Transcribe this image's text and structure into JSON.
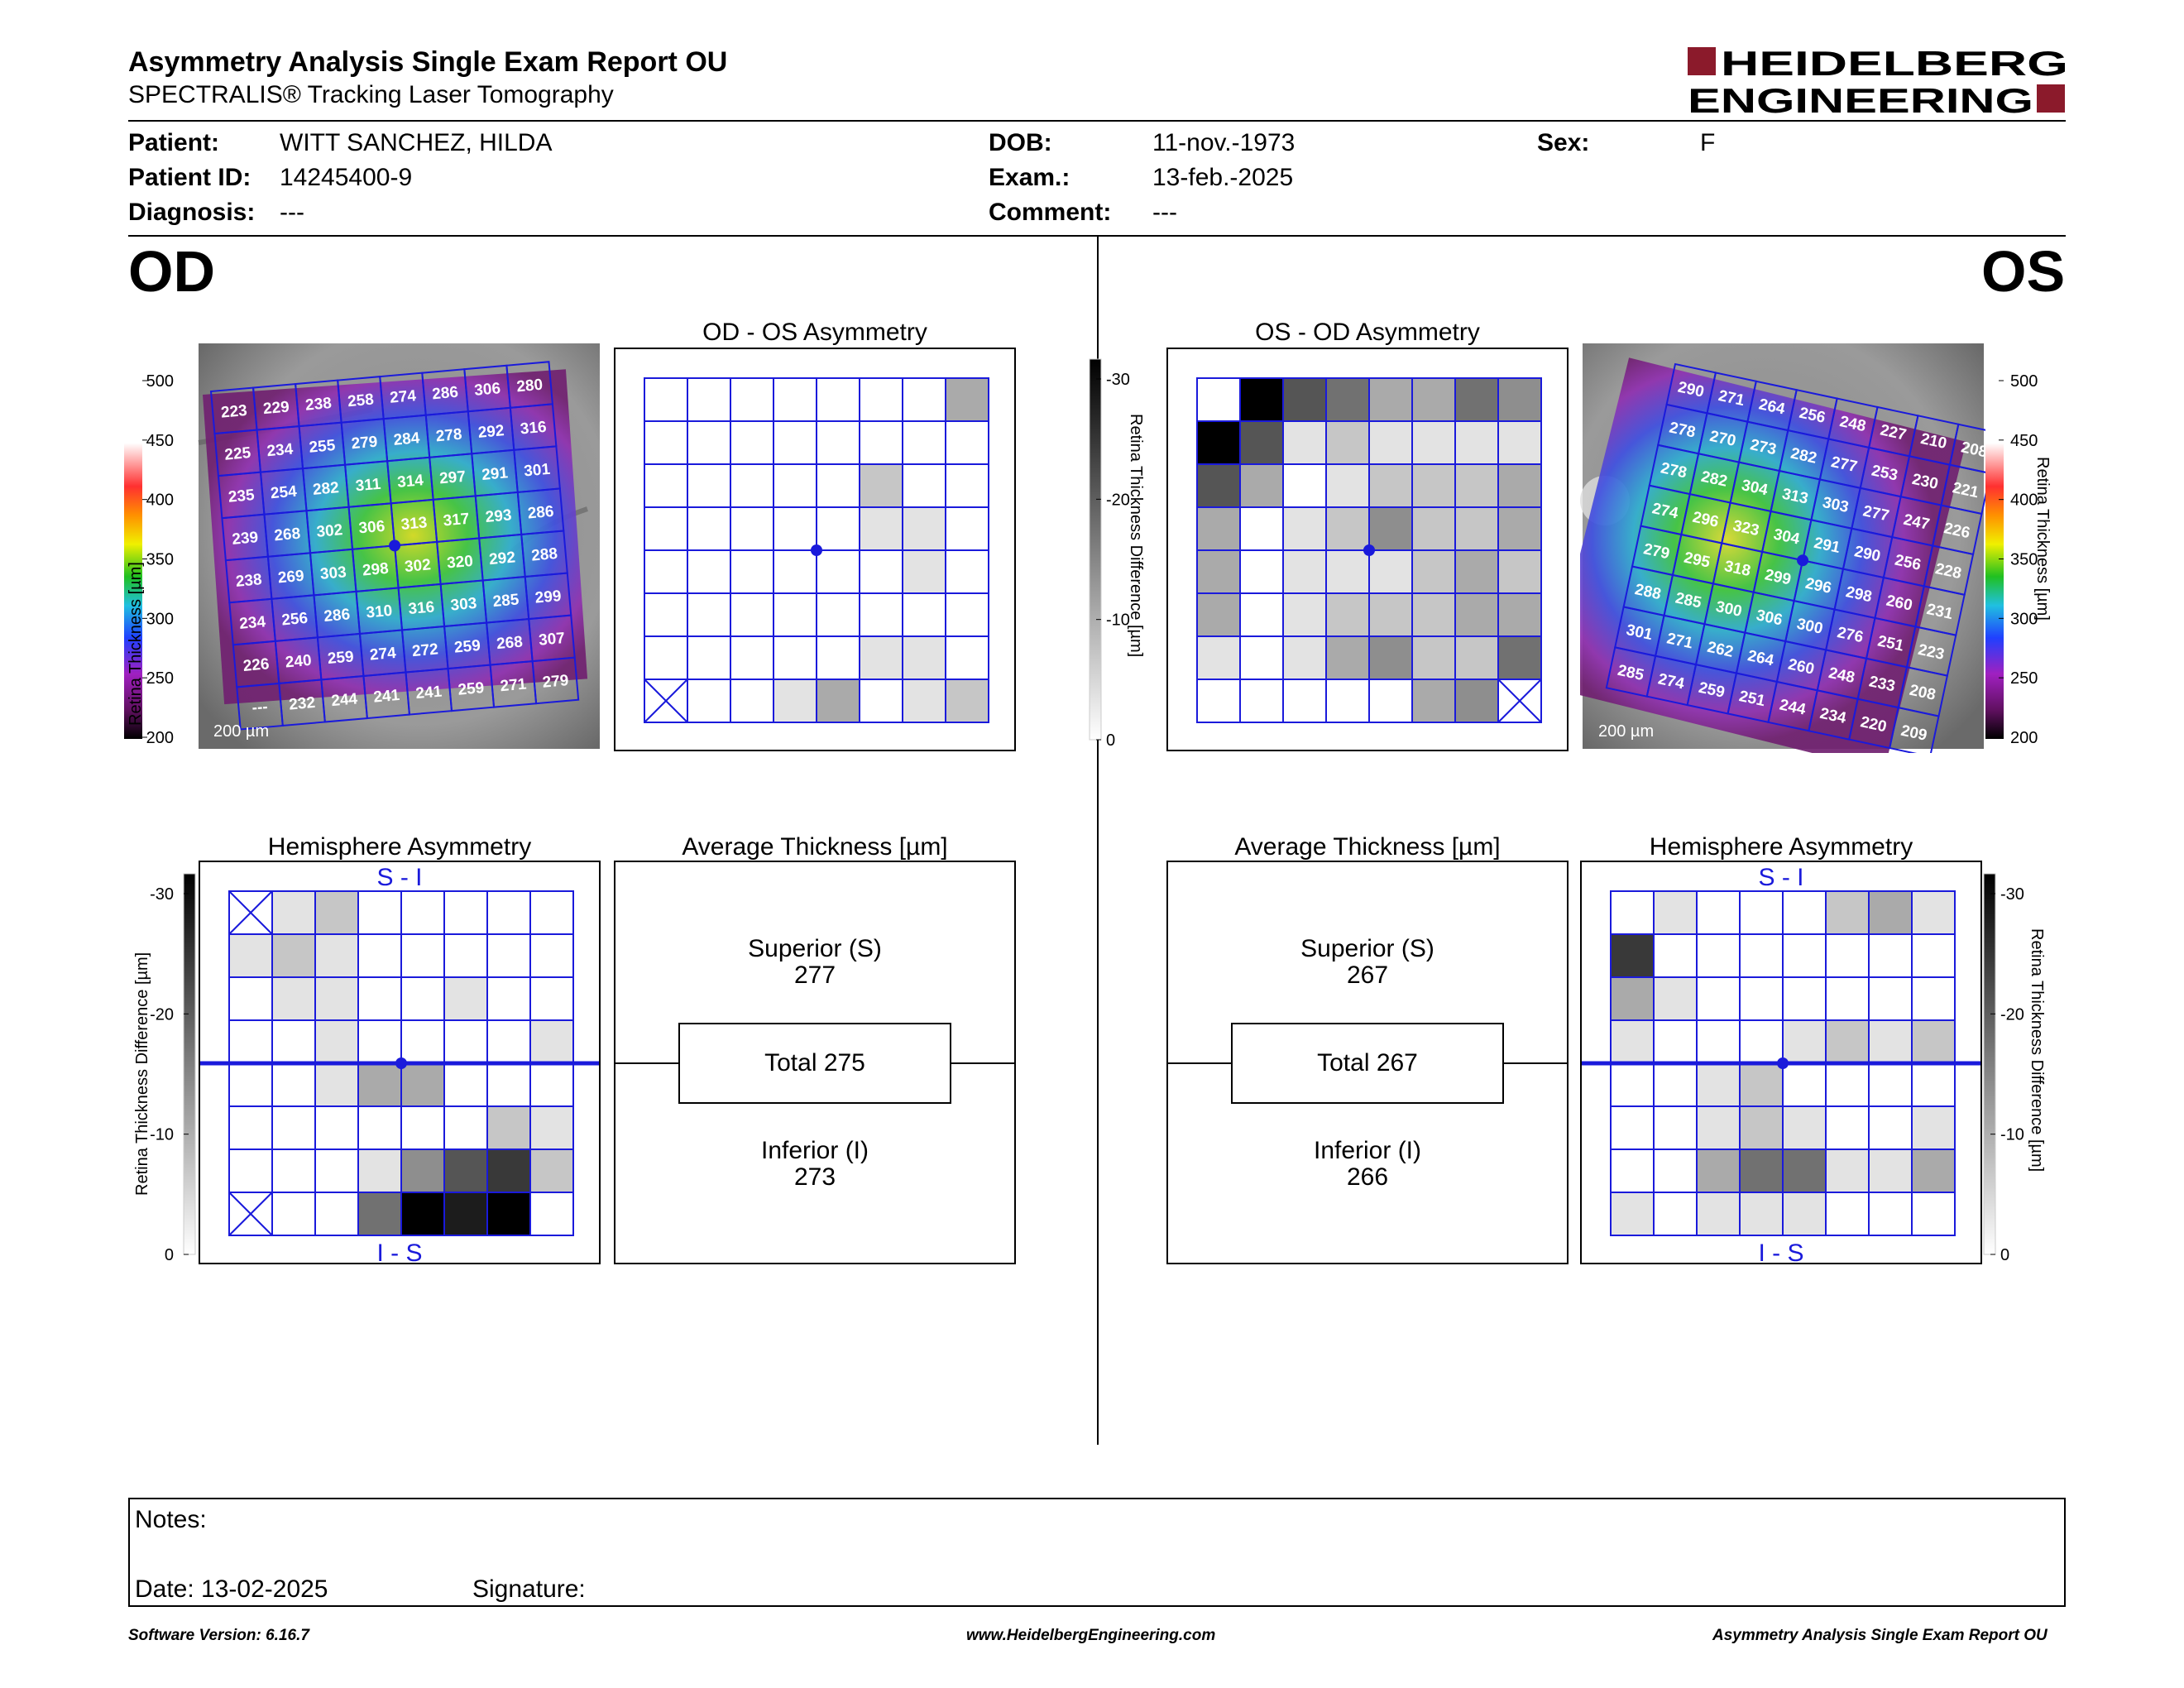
{
  "header": {
    "title": "Asymmetry Analysis Single Exam Report OU",
    "subtitle": "SPECTRALIS® Tracking Laser Tomography",
    "logo_line1": "HEIDELBERG",
    "logo_line2": "ENGINEERING",
    "brand_color": "#8b1a2b"
  },
  "patient": {
    "patient_label": "Patient:",
    "patient_value": "WITT SANCHEZ, HILDA",
    "id_label": "Patient ID:",
    "id_value": "14245400-9",
    "diagnosis_label": "Diagnosis:",
    "diagnosis_value": "---",
    "dob_label": "DOB:",
    "dob_value": "11-nov.-1973",
    "exam_label": "Exam.:",
    "exam_value": "13-feb.-2025",
    "comment_label": "Comment:",
    "comment_value": "---",
    "sex_label": "Sex:",
    "sex_value": "F"
  },
  "od": {
    "eye_label": "OD",
    "asym_title": "OD - OS Asymmetry",
    "hemi_title": "Hemisphere Asymmetry",
    "avg_title": "Average Thickness [µm]",
    "scale_label": "200 µm",
    "thickness_axis_label": "Retina  Thickness [µm]",
    "thickness_ticks": [
      "500",
      "450",
      "400",
      "350",
      "300",
      "250",
      "200"
    ],
    "diff_axis_label": "Retina Thickness Difference [µm]",
    "diff_ticks": [
      "-30",
      "-20",
      "-10",
      "0"
    ],
    "hemi_top_label": "S - I",
    "hemi_bottom_label": "I - S",
    "superior_label": "Superior (S)",
    "superior_value": "277",
    "total_label": "Total 275",
    "inferior_label": "Inferior (I)",
    "inferior_value": "273",
    "thickness_grid": [
      [
        "223",
        "229",
        "238",
        "258",
        "274",
        "286",
        "306",
        "280"
      ],
      [
        "225",
        "234",
        "255",
        "279",
        "284",
        "278",
        "292",
        "316"
      ],
      [
        "235",
        "254",
        "282",
        "311",
        "314",
        "297",
        "291",
        "301"
      ],
      [
        "239",
        "268",
        "302",
        "306",
        "313",
        "317",
        "293",
        "286"
      ],
      [
        "238",
        "269",
        "303",
        "298",
        "302",
        "320",
        "292",
        "288"
      ],
      [
        "234",
        "256",
        "286",
        "310",
        "316",
        "303",
        "285",
        "299"
      ],
      [
        "226",
        "240",
        "259",
        "274",
        "272",
        "259",
        "268",
        "307"
      ],
      [
        "---",
        "232",
        "244",
        "241",
        "241",
        "259",
        "271",
        "279"
      ]
    ],
    "asym_grid": [
      [
        0,
        0,
        0,
        0,
        0,
        0,
        0,
        3
      ],
      [
        0,
        0,
        0,
        0,
        0,
        0,
        0,
        0
      ],
      [
        0,
        0,
        0,
        0,
        0,
        2,
        0,
        0
      ],
      [
        0,
        0,
        0,
        0,
        0,
        1,
        1,
        0
      ],
      [
        0,
        0,
        0,
        0,
        0,
        0,
        1,
        0
      ],
      [
        0,
        0,
        0,
        0,
        0,
        0,
        0,
        0
      ],
      [
        0,
        0,
        0,
        0,
        0,
        1,
        1,
        0
      ],
      [
        "x",
        0,
        0,
        1,
        3,
        0,
        1,
        2
      ]
    ],
    "hemi_grid": [
      [
        "x",
        1,
        2,
        0,
        0,
        0,
        0,
        0
      ],
      [
        1,
        2,
        1,
        0,
        0,
        0,
        0,
        0
      ],
      [
        0,
        1,
        1,
        0,
        0,
        1,
        0,
        0
      ],
      [
        0,
        0,
        1,
        0,
        0,
        0,
        0,
        1
      ],
      [
        0,
        0,
        1,
        3,
        3,
        0,
        0,
        0
      ],
      [
        0,
        0,
        0,
        0,
        0,
        0,
        2,
        1
      ],
      [
        0,
        0,
        0,
        1,
        4,
        6,
        7,
        2
      ],
      [
        "x",
        0,
        0,
        5,
        9,
        8,
        9,
        0
      ]
    ]
  },
  "os": {
    "eye_label": "OS",
    "asym_title": "OS - OD Asymmetry",
    "hemi_title": "Hemisphere Asymmetry",
    "avg_title": "Average Thickness [µm]",
    "scale_label": "200 µm",
    "thickness_axis_label": "Retina  Thickness [µm]",
    "thickness_ticks": [
      "500",
      "450",
      "400",
      "350",
      "300",
      "250",
      "200"
    ],
    "diff_axis_label": "Retina Thickness Difference [µm]",
    "diff_ticks": [
      "-30",
      "-20",
      "-10",
      "0"
    ],
    "hemi_top_label": "S - I",
    "hemi_bottom_label": "I - S",
    "superior_label": "Superior (S)",
    "superior_value": "267",
    "total_label": "Total 267",
    "inferior_label": "Inferior (I)",
    "inferior_value": "266",
    "thickness_grid": [
      [
        "290",
        "271",
        "264",
        "256",
        "248",
        "227",
        "210",
        "208"
      ],
      [
        "278",
        "270",
        "273",
        "282",
        "277",
        "253",
        "230",
        "221"
      ],
      [
        "278",
        "282",
        "304",
        "313",
        "303",
        "277",
        "247",
        "226"
      ],
      [
        "274",
        "296",
        "323",
        "304",
        "291",
        "290",
        "256",
        "228"
      ],
      [
        "279",
        "295",
        "318",
        "299",
        "296",
        "298",
        "260",
        "231"
      ],
      [
        "288",
        "285",
        "300",
        "306",
        "300",
        "276",
        "251",
        "223"
      ],
      [
        "301",
        "271",
        "262",
        "264",
        "260",
        "248",
        "233",
        "208"
      ],
      [
        "285",
        "274",
        "259",
        "251",
        "244",
        "234",
        "220",
        "209"
      ]
    ],
    "asym_grid": [
      [
        0,
        9,
        6,
        5,
        3,
        3,
        5,
        4
      ],
      [
        9,
        6,
        1,
        2,
        1,
        1,
        1,
        1
      ],
      [
        6,
        3,
        0,
        1,
        2,
        2,
        2,
        3
      ],
      [
        3,
        0,
        1,
        2,
        4,
        2,
        2,
        3
      ],
      [
        3,
        0,
        1,
        1,
        1,
        2,
        3,
        2
      ],
      [
        3,
        0,
        1,
        2,
        2,
        2,
        3,
        3
      ],
      [
        1,
        0,
        1,
        3,
        4,
        2,
        2,
        5
      ],
      [
        0,
        0,
        0,
        0,
        0,
        3,
        4,
        "x"
      ]
    ],
    "hemi_grid": [
      [
        0,
        1,
        0,
        0,
        0,
        2,
        3,
        1
      ],
      [
        7,
        0,
        0,
        0,
        0,
        0,
        0,
        0
      ],
      [
        3,
        1,
        0,
        0,
        0,
        0,
        0,
        0
      ],
      [
        1,
        0,
        0,
        0,
        1,
        2,
        1,
        2
      ],
      [
        0,
        0,
        1,
        2,
        0,
        0,
        0,
        0
      ],
      [
        0,
        0,
        1,
        2,
        1,
        0,
        0,
        1
      ],
      [
        0,
        0,
        3,
        5,
        5,
        1,
        1,
        3
      ],
      [
        1,
        0,
        1,
        1,
        1,
        0,
        0,
        0
      ]
    ]
  },
  "notes": {
    "notes_label": "Notes:",
    "date_label": "Date: 13-02-2025",
    "signature_label": "Signature:"
  },
  "footer": {
    "version": "Software Version: 6.16.7",
    "website": "www.HeidelbergEngineering.com",
    "report": "Asymmetry Analysis Single Exam Report OU"
  },
  "colors": {
    "grid_blue": "#1a1adb",
    "fovea_dot": "#1a1adb"
  }
}
